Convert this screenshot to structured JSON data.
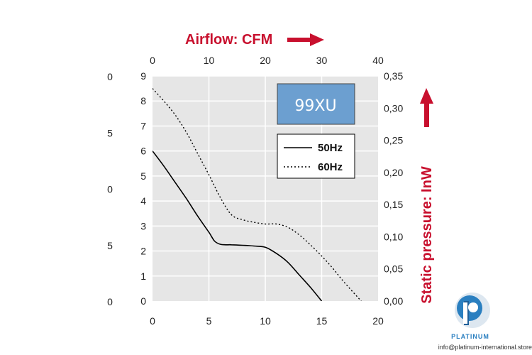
{
  "chart_data": {
    "type": "line",
    "top_axis": {
      "label": "Airflow: CFM",
      "ticks": [
        "0",
        "10",
        "20",
        "30",
        "40"
      ],
      "range": [
        0,
        40
      ]
    },
    "bottom_axis": {
      "ticks": [
        "0",
        "5",
        "10",
        "15",
        "20"
      ],
      "range": [
        0,
        20
      ]
    },
    "left_axis": {
      "ticks": [
        "0",
        "1",
        "2",
        "3",
        "4",
        "5",
        "6",
        "7",
        "8",
        "9"
      ],
      "range": [
        0,
        9
      ]
    },
    "outer_left_labels": [
      "0",
      "5",
      "0",
      "5",
      "0"
    ],
    "right_axis": {
      "label": "Static pressure: InW",
      "ticks": [
        "0,00",
        "0,05",
        "0,10",
        "0,15",
        "0,20",
        "0,25",
        "0,30",
        "0,35"
      ],
      "range": [
        0,
        0.35
      ]
    },
    "model_label": "99XU",
    "grid": true,
    "legend_position": "top-right",
    "series": [
      {
        "name": "50Hz",
        "style": "solid",
        "color": "#000000",
        "x": [
          0,
          1,
          2,
          3,
          4,
          5,
          5.5,
          6,
          6.5,
          7,
          8,
          9,
          10,
          11,
          12,
          13,
          14,
          15
        ],
        "y": [
          6.0,
          5.4,
          4.75,
          4.1,
          3.4,
          2.75,
          2.4,
          2.27,
          2.25,
          2.25,
          2.23,
          2.2,
          2.15,
          1.9,
          1.55,
          1.05,
          0.55,
          0.0
        ]
      },
      {
        "name": "60Hz",
        "style": "dotted",
        "color": "#000000",
        "x": [
          0,
          1,
          2,
          3,
          4,
          5,
          6,
          7,
          8,
          9,
          10,
          11,
          12,
          13,
          14,
          15,
          16,
          17,
          18.5
        ],
        "y": [
          8.5,
          8.0,
          7.45,
          6.75,
          5.9,
          5.05,
          4.15,
          3.45,
          3.25,
          3.15,
          3.08,
          3.08,
          2.95,
          2.65,
          2.25,
          1.8,
          1.3,
          0.75,
          0.0
        ]
      }
    ],
    "colors": {
      "accent": "#c8102e",
      "model_box": "#6c9fd0",
      "plot_bg": "#e6e6e6"
    }
  },
  "brand": {
    "name": "PLATINUM",
    "email": "info@platinum-international.store",
    "color": "#2a7fc0"
  }
}
